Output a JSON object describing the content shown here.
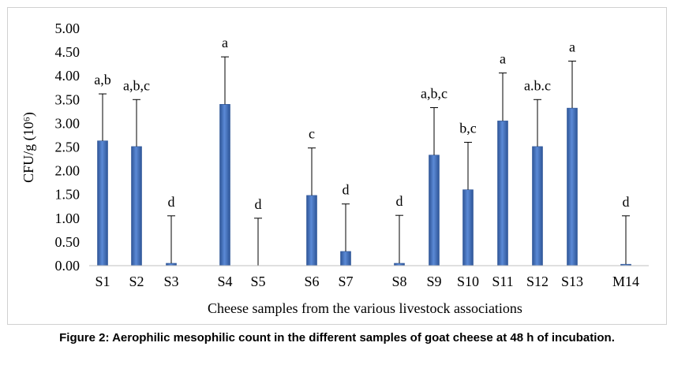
{
  "caption": "Figure 2: Aerophilic mesophilic count in the different samples of goat cheese at 48 h of incubation.",
  "colors": {
    "bar": "#4472c4",
    "bar_dark": "#2e5597",
    "error_bar": "#000000",
    "axis": "#bfbfbf"
  },
  "chart_data": {
    "type": "bar",
    "xlabel": "Cheese samples from the various livestock associations",
    "ylabel": "CFU/g (10⁶)",
    "ylim": [
      0,
      5
    ],
    "yticks": [
      "0.00",
      "0.50",
      "1.00",
      "1.50",
      "2.00",
      "2.50",
      "3.00",
      "3.50",
      "4.00",
      "4.50",
      "5.00"
    ],
    "grid": false,
    "legend": "none",
    "categories": [
      "S1",
      "S2",
      "S3",
      "S4",
      "S5",
      "S6",
      "S7",
      "S8",
      "S9",
      "S10",
      "S11",
      "S12",
      "S13",
      "M14"
    ],
    "values": [
      2.63,
      2.51,
      0.05,
      3.4,
      0.0,
      1.48,
      0.3,
      0.05,
      2.33,
      1.6,
      3.05,
      2.51,
      3.32,
      0.03
    ],
    "error_upper": [
      3.62,
      3.5,
      1.05,
      4.4,
      1.0,
      2.48,
      1.3,
      1.06,
      3.33,
      2.6,
      4.06,
      3.5,
      4.31,
      1.05
    ],
    "data_labels": [
      "a,b",
      "a,b,c",
      "d",
      "a",
      "d",
      "c",
      "d",
      "d",
      "a,b,c",
      "b,c",
      "a",
      "a.b.c",
      "a",
      "d"
    ]
  }
}
